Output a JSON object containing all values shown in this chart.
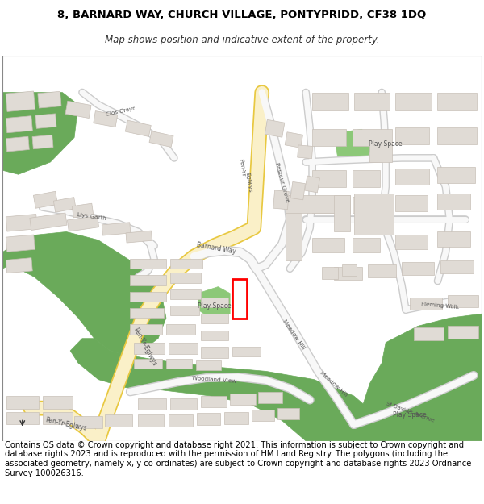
{
  "title_line1": "8, BARNARD WAY, CHURCH VILLAGE, PONTYPRIDD, CF38 1DQ",
  "title_line2": "Map shows position and indicative extent of the property.",
  "footer_text": "Contains OS data © Crown copyright and database right 2021. This information is subject to Crown copyright and database rights 2023 and is reproduced with the permission of HM Land Registry. The polygons (including the associated geometry, namely x, y co-ordinates) are subject to Crown copyright and database rights 2023 Ordnance Survey 100026316.",
  "bg_color": "#ffffff",
  "map_bg": "#ffffff",
  "road_yellow": "#faf0c8",
  "road_yellow_border": "#e8c840",
  "road_white": "#ffffff",
  "road_white_border": "#d0c8c0",
  "building_color": "#e0dbd5",
  "building_border": "#c8c0b8",
  "green_area": "#6aaa5a",
  "green_light": "#b8d8a0",
  "green_playspace": "#8cc878",
  "highlight_color": "#ff0000",
  "title_fontsize": 9.5,
  "subtitle_fontsize": 8.5,
  "footer_fontsize": 7.2
}
